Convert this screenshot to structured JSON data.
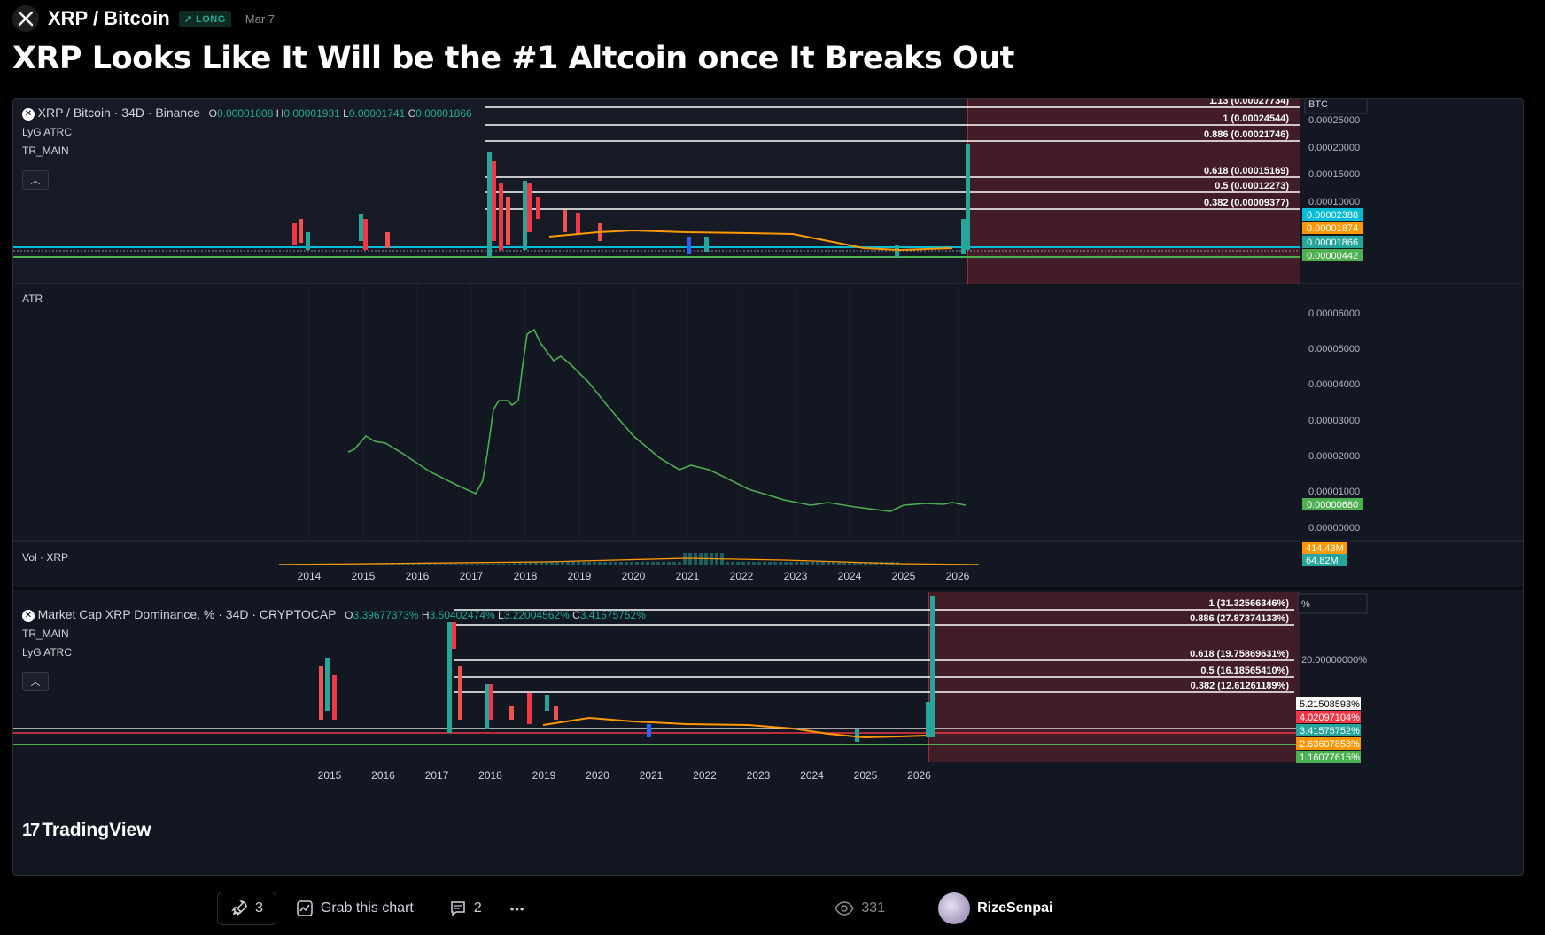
{
  "header": {
    "pair": "XRP / Bitcoin",
    "badge": "LONG",
    "date": "Mar 7"
  },
  "title": "XRP Looks Like It Will be the #1 Altcoin once It Breaks Out",
  "pane1": {
    "symbol": "XRP / Bitcoin · 34D · Binance",
    "open_label": "O",
    "open": "0.00001808",
    "high_label": "H",
    "high": "0.00001931",
    "low_label": "L",
    "low": "0.00001741",
    "close_label": "C",
    "close": "0.00001866",
    "indicators": [
      "LyG ATRC",
      "TR_MAIN"
    ],
    "currency": "BTC",
    "axis_ticks": [
      "0.00025000",
      "0.00020000",
      "0.00015000",
      "0.00010000"
    ],
    "fib_levels": [
      "1.13 (0.00027734)",
      "1 (0.00024544)",
      "0.886 (0.00021746)",
      "0.618 (0.00015169)",
      "0.5 (0.00012273)",
      "0.382 (0.00009377)"
    ],
    "price_tags": [
      {
        "text": "0.00002388",
        "color": "#00bcd4"
      },
      {
        "text": "0.00001874",
        "color": "#ff9800"
      },
      {
        "text": "0.00001866",
        "color": "#26a69a"
      },
      {
        "text": "0.00000442",
        "color": "#4caf50"
      }
    ]
  },
  "atr": {
    "label": "ATR",
    "axis_ticks": [
      "0.00006000",
      "0.00005000",
      "0.00004000",
      "0.00003000",
      "0.00002000",
      "0.00001000",
      "0.00000000"
    ],
    "value_tag": "0.00000680",
    "line_color": "#4caf50"
  },
  "vol": {
    "label": "Vol · XRP",
    "tags": [
      "414.43M",
      "64.82M"
    ]
  },
  "xaxis1": [
    "2014",
    "2015",
    "2016",
    "2017",
    "2018",
    "2019",
    "2020",
    "2021",
    "2022",
    "2023",
    "2024",
    "2025",
    "2026"
  ],
  "pane2": {
    "symbol": "Market Cap XRP Dominance, % · 34D · CRYPTOCAP",
    "open_label": "O",
    "open": "3.39677373%",
    "high_label": "H",
    "high": "3.50402474%",
    "low_label": "L",
    "low": "3.22004562%",
    "close_label": "C",
    "close": "3.41575752%",
    "indicators": [
      "TR_MAIN",
      "LyG ATRC"
    ],
    "currency": "%",
    "axis_ticks": [
      "20.00000000%"
    ],
    "fib_levels": [
      "1 (31.32566346%)",
      "0.886 (27.87374133%)",
      "0.618 (19.75869631%)",
      "0.5 (16.18565410%)",
      "0.382 (12.61261189%)"
    ],
    "price_tags": [
      {
        "text": "5.21508593%",
        "color": "#ffffff"
      },
      {
        "text": "4.02097104%",
        "color": "#f23645"
      },
      {
        "text": "3.41575752%",
        "color": "#26a69a"
      },
      {
        "text": "2.63607858%",
        "color": "#ff9800"
      },
      {
        "text": "1.16077615%",
        "color": "#4caf50"
      }
    ]
  },
  "xaxis2": [
    "2015",
    "2016",
    "2017",
    "2018",
    "2019",
    "2020",
    "2021",
    "2022",
    "2023",
    "2024",
    "2025",
    "2026"
  ],
  "watermark": "TradingView",
  "footer": {
    "boosts": "3",
    "grab_label": "Grab this chart",
    "comments": "2",
    "more": "•••",
    "views": "331",
    "author": "RizeSenpai"
  }
}
